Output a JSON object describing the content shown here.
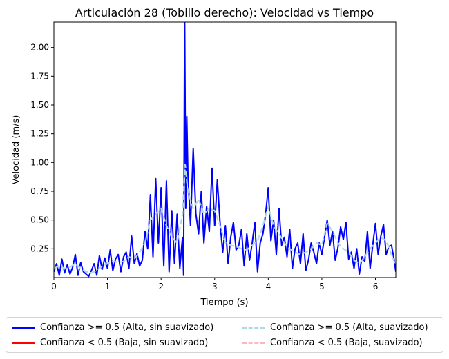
{
  "chart_data": {
    "type": "line",
    "title": "Articulación 28 (Tobillo derecho): Velocidad vs Tiempo",
    "xlabel": "Tiempo (s)",
    "ylabel": "Velocidad (m/s)",
    "xlim": [
      0,
      6.38
    ],
    "ylim": [
      0,
      2.22
    ],
    "xticks": [
      0,
      1,
      2,
      3,
      4,
      5,
      6
    ],
    "yticks": [
      0.25,
      0.5,
      0.75,
      1.0,
      1.25,
      1.5,
      1.75,
      2.0
    ],
    "ytick_labels": [
      "0.25",
      "0.50",
      "0.75",
      "1.00",
      "1.25",
      "1.50",
      "1.75",
      "2.00"
    ],
    "grid": false,
    "legend_position": "bottom-center",
    "series": [
      {
        "name": "Confianza >= 0.5 (Alta, sin suavizado)",
        "color": "#0000ff",
        "style": "solid",
        "x": [
          0,
          0.05,
          0.1,
          0.15,
          0.2,
          0.25,
          0.3,
          0.35,
          0.4,
          0.45,
          0.5,
          0.55,
          0.6,
          0.65,
          0.7,
          0.75,
          0.8,
          0.85,
          0.9,
          0.95,
          1.0,
          1.05,
          1.1,
          1.15,
          1.2,
          1.25,
          1.3,
          1.35,
          1.4,
          1.45,
          1.5,
          1.55,
          1.6,
          1.65,
          1.7,
          1.75,
          1.8,
          1.85,
          1.9,
          1.95,
          2.0,
          2.05,
          2.1,
          2.15,
          2.2,
          2.25,
          2.3,
          2.35,
          2.4,
          2.42,
          2.44,
          2.46,
          2.48,
          2.5,
          2.55,
          2.6,
          2.65,
          2.7,
          2.75,
          2.8,
          2.85,
          2.9,
          2.95,
          3.0,
          3.05,
          3.1,
          3.15,
          3.2,
          3.25,
          3.3,
          3.35,
          3.4,
          3.45,
          3.5,
          3.55,
          3.6,
          3.65,
          3.7,
          3.75,
          3.8,
          3.85,
          3.9,
          3.95,
          4.0,
          4.05,
          4.1,
          4.15,
          4.2,
          4.25,
          4.3,
          4.35,
          4.4,
          4.45,
          4.5,
          4.55,
          4.6,
          4.65,
          4.7,
          4.75,
          4.8,
          4.85,
          4.9,
          4.95,
          5.0,
          5.05,
          5.1,
          5.15,
          5.2,
          5.25,
          5.3,
          5.35,
          5.4,
          5.45,
          5.5,
          5.55,
          5.6,
          5.65,
          5.7,
          5.75,
          5.8,
          5.85,
          5.9,
          5.95,
          6.0,
          6.05,
          6.1,
          6.15,
          6.2,
          6.25,
          6.3,
          6.35,
          6.38
        ],
        "y": [
          0.05,
          0.12,
          0.02,
          0.16,
          0.04,
          0.11,
          0.03,
          0.09,
          0.2,
          0.02,
          0.13,
          0.05,
          0.03,
          0.01,
          0.06,
          0.12,
          0.02,
          0.19,
          0.07,
          0.17,
          0.08,
          0.24,
          0.06,
          0.16,
          0.2,
          0.05,
          0.18,
          0.22,
          0.08,
          0.36,
          0.12,
          0.21,
          0.1,
          0.15,
          0.4,
          0.25,
          0.72,
          0.18,
          0.86,
          0.3,
          0.78,
          0.1,
          0.84,
          0.05,
          0.58,
          0.12,
          0.55,
          0.08,
          0.35,
          0.02,
          2.3,
          0.6,
          1.4,
          0.9,
          0.45,
          1.12,
          0.55,
          0.38,
          0.75,
          0.3,
          0.62,
          0.4,
          0.95,
          0.45,
          0.85,
          0.48,
          0.22,
          0.45,
          0.12,
          0.35,
          0.48,
          0.24,
          0.28,
          0.42,
          0.1,
          0.38,
          0.15,
          0.3,
          0.48,
          0.05,
          0.3,
          0.38,
          0.55,
          0.78,
          0.32,
          0.5,
          0.2,
          0.6,
          0.28,
          0.35,
          0.18,
          0.42,
          0.08,
          0.25,
          0.3,
          0.12,
          0.38,
          0.06,
          0.15,
          0.3,
          0.22,
          0.12,
          0.3,
          0.2,
          0.35,
          0.5,
          0.28,
          0.4,
          0.15,
          0.26,
          0.44,
          0.33,
          0.48,
          0.16,
          0.22,
          0.08,
          0.25,
          0.03,
          0.18,
          0.14,
          0.4,
          0.08,
          0.28,
          0.47,
          0.2,
          0.36,
          0.46,
          0.2,
          0.27,
          0.28,
          0.15,
          0.05
        ]
      },
      {
        "name": "Confianza < 0.5 (Baja, sin suavizado)",
        "color": "#ff0000",
        "style": "solid",
        "x": [],
        "y": []
      },
      {
        "name": "Confianza >= 0.5 (Alta, suavizado)",
        "color": "#add8e6",
        "style": "dashed",
        "x": [
          0,
          0.1,
          0.2,
          0.3,
          0.4,
          0.5,
          0.6,
          0.7,
          0.8,
          0.9,
          1.0,
          1.1,
          1.2,
          1.3,
          1.4,
          1.5,
          1.6,
          1.7,
          1.8,
          1.9,
          2.0,
          2.1,
          2.2,
          2.3,
          2.4,
          2.45,
          2.5,
          2.6,
          2.7,
          2.8,
          2.9,
          3.0,
          3.1,
          3.2,
          3.3,
          3.4,
          3.5,
          3.6,
          3.7,
          3.8,
          3.9,
          4.0,
          4.1,
          4.2,
          4.3,
          4.4,
          4.5,
          4.6,
          4.7,
          4.8,
          4.9,
          5.0,
          5.1,
          5.2,
          5.3,
          5.4,
          5.5,
          5.6,
          5.7,
          5.8,
          5.9,
          6.0,
          6.1,
          6.2,
          6.3,
          6.38
        ],
        "y": [
          0.08,
          0.1,
          0.08,
          0.09,
          0.12,
          0.08,
          0.05,
          0.04,
          0.06,
          0.1,
          0.12,
          0.14,
          0.13,
          0.14,
          0.18,
          0.16,
          0.22,
          0.3,
          0.5,
          0.55,
          0.6,
          0.45,
          0.35,
          0.3,
          0.55,
          0.98,
          0.75,
          0.6,
          0.68,
          0.55,
          0.6,
          0.58,
          0.45,
          0.3,
          0.28,
          0.27,
          0.25,
          0.24,
          0.28,
          0.32,
          0.45,
          0.62,
          0.45,
          0.38,
          0.3,
          0.25,
          0.22,
          0.2,
          0.22,
          0.25,
          0.3,
          0.28,
          0.47,
          0.4,
          0.3,
          0.25,
          0.22,
          0.15,
          0.12,
          0.18,
          0.25,
          0.3,
          0.35,
          0.32,
          0.2,
          0.1
        ]
      },
      {
        "name": "Confianza < 0.5 (Baja, suavizado)",
        "color": "#ffb6c1",
        "style": "dashed",
        "x": [],
        "y": []
      }
    ]
  }
}
